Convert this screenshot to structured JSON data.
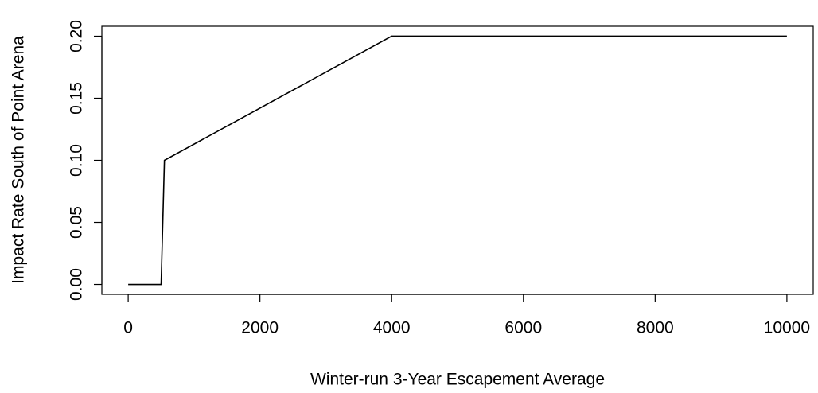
{
  "chart_data": {
    "type": "line",
    "x_label": "Winter-run 3-Year Escapement Average",
    "y_label": "Impact Rate South of Point Arena",
    "x": [
      0,
      500,
      550,
      4000,
      10000
    ],
    "values": [
      0,
      0,
      0.1,
      0.2,
      0.2
    ],
    "color": "#000000",
    "xlim": [
      -400,
      10400
    ],
    "ylim": [
      -0.008,
      0.208
    ],
    "xticks": [
      0,
      2000,
      4000,
      6000,
      8000,
      10000
    ],
    "yticks": [
      {
        "value": 0,
        "label": "0.00"
      },
      0.05,
      {
        "value": 0.1,
        "label": "0.10"
      },
      0.15,
      {
        "value": 0.2,
        "label": "0.20"
      }
    ]
  }
}
